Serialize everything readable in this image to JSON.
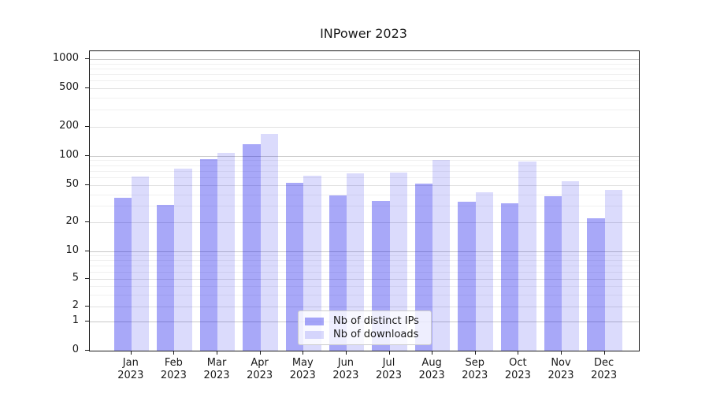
{
  "title": "INPower 2023",
  "chart_data": {
    "type": "bar",
    "title": "INPower 2023",
    "x_axis": {
      "months": [
        "Jan",
        "Feb",
        "Mar",
        "Apr",
        "May",
        "Jun",
        "Jul",
        "Aug",
        "Sep",
        "Oct",
        "Nov",
        "Dec"
      ],
      "year": "2023"
    },
    "y_axis": {
      "scale": "symlog",
      "ticks": [
        0,
        1,
        2,
        5,
        10,
        20,
        50,
        100,
        200,
        500,
        1000
      ],
      "range": [
        0,
        1000
      ],
      "grid": true
    },
    "series": [
      {
        "name": "Nb of distinct IPs",
        "color": "#a8a8f8",
        "values": [
          37,
          31,
          92,
          131,
          53,
          39,
          34,
          52,
          33,
          32,
          38,
          22
        ]
      },
      {
        "name": "Nb of downloads",
        "color": "#dbdbf9",
        "values": [
          62,
          74,
          107,
          168,
          63,
          66,
          68,
          90,
          42,
          87,
          55,
          45
        ]
      }
    ],
    "legend": {
      "position": "lower center",
      "entries": [
        "Nb of distinct IPs",
        "Nb of downloads"
      ]
    }
  },
  "colors": {
    "bar_base": "#0000eb",
    "ips_alpha": 0.34,
    "downloads_alpha": 0.14,
    "grid_decade": "#c9c9c9",
    "grid_mid": "#e1e1e1",
    "grid_minor": "#f0f0f0",
    "spine": "#1a1a1a",
    "text": "#1a1a1a",
    "legend_border": "#cccccc"
  }
}
